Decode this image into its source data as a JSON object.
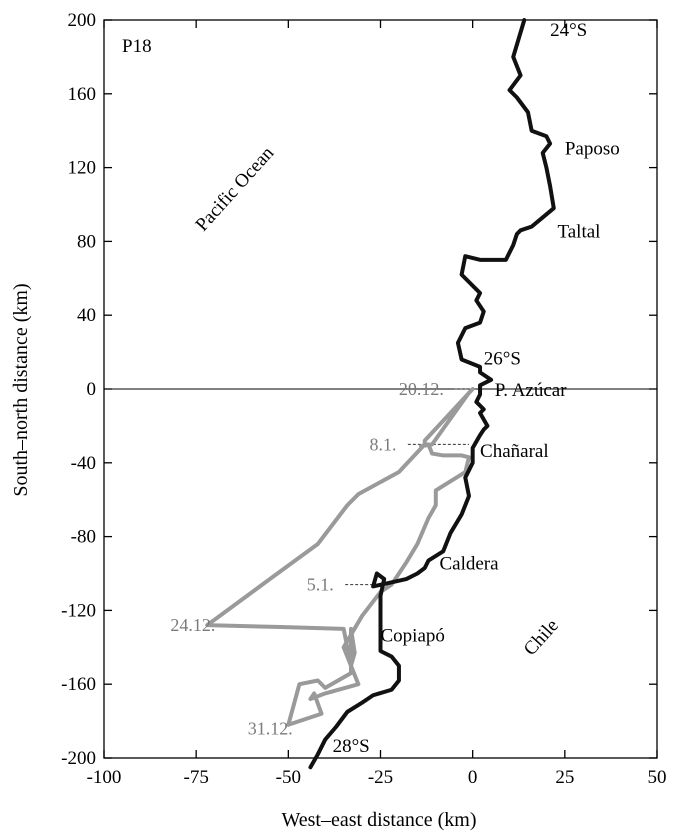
{
  "chart_data": {
    "type": "line",
    "panel_label": "P18",
    "xlabel": "West–east distance (km)",
    "ylabel": "South–north distance (km)",
    "xlim": [
      -100,
      50
    ],
    "ylim": [
      -200,
      200
    ],
    "xticks": [
      -100,
      -75,
      -50,
      -25,
      0,
      25,
      50
    ],
    "yticks": [
      -200,
      -160,
      -120,
      -80,
      -40,
      0,
      40,
      80,
      120,
      160,
      200
    ],
    "xtick_labels": [
      "-100",
      "-75",
      "-50",
      "-25",
      "0",
      "25",
      "50"
    ],
    "ytick_labels": [
      "-200",
      "-160",
      "-120",
      "-80",
      "-40",
      "0",
      "40",
      "80",
      "120",
      "160",
      "200"
    ],
    "reference_line_y": 0,
    "colors": {
      "coast": "#111111",
      "trajectory": "#9a9a9a",
      "date": "#7a7a7a"
    },
    "coastline": {
      "x": [
        -44,
        -42,
        -40,
        -37,
        -34,
        -30,
        -27,
        -22,
        -20,
        -20,
        -22,
        -25,
        -25,
        -25,
        -24,
        -26,
        -27,
        -18,
        -15,
        -13,
        -12,
        -8,
        -6,
        -3,
        -1,
        -2,
        0,
        0,
        2,
        3,
        4,
        2,
        3,
        1,
        2,
        2,
        5,
        2,
        2,
        -3,
        -4,
        -2,
        2,
        3,
        1,
        2,
        -3,
        -2,
        2,
        9,
        11,
        12,
        13,
        16,
        19,
        22,
        21,
        20,
        19,
        21,
        20,
        16,
        15,
        12,
        10,
        13,
        11,
        14
      ],
      "y": [
        -205,
        -198,
        -190,
        -183,
        -175,
        -170,
        -166,
        -163,
        -158,
        -150,
        -145,
        -142,
        -125,
        -112,
        -103,
        -100,
        -107,
        -103,
        -100,
        -97,
        -93,
        -88,
        -78,
        -68,
        -58,
        -48,
        -40,
        -32,
        -25,
        -22,
        -20,
        -13,
        -11,
        -7,
        -3,
        2,
        5,
        9,
        12,
        16,
        25,
        33,
        36,
        42,
        48,
        52,
        62,
        72,
        70,
        70,
        78,
        84,
        86,
        88,
        93,
        98,
        110,
        120,
        128,
        133,
        137,
        140,
        150,
        158,
        162,
        170,
        180,
        200
      ]
    },
    "trajectory": {
      "x": [
        0,
        -13,
        -13,
        -20,
        -31,
        -34,
        -42,
        -55,
        -72,
        -52,
        -35,
        -33,
        -32,
        -33,
        -33,
        -40,
        -42,
        -47,
        -50,
        -41,
        -43,
        -44,
        -40,
        -31,
        -35,
        -30,
        -25,
        -22,
        -20,
        -18,
        -15,
        -12,
        -10,
        -10,
        -2,
        -1,
        -3,
        -8,
        -11,
        -12,
        -14,
        -11,
        -1
      ],
      "y": [
        0,
        -28,
        -30,
        -45,
        -57,
        -63,
        -84,
        -103,
        -128,
        -129,
        -130,
        -150,
        -143,
        -130,
        -154,
        -162,
        -158,
        -160,
        -182,
        -176,
        -165,
        -168,
        -165,
        -160,
        -140,
        -123,
        -110,
        -106,
        -100,
        -94,
        -84,
        -70,
        -63,
        -55,
        -45,
        -37,
        -36,
        -36,
        -35,
        -30,
        -31,
        -30,
        -2
      ]
    },
    "place_labels": [
      {
        "text": "24°S",
        "x": 21,
        "y": 195
      },
      {
        "text": "Paposo",
        "x": 25,
        "y": 131
      },
      {
        "text": "Taltal",
        "x": 23,
        "y": 86
      },
      {
        "text": "26°S",
        "x": 3,
        "y": 17
      },
      {
        "text": "P. Azúcar",
        "x": 6,
        "y": 0
      },
      {
        "text": "Chañaral",
        "x": 2,
        "y": -33
      },
      {
        "text": "Caldera",
        "x": -9,
        "y": -94
      },
      {
        "text": "Copiapó",
        "x": -25,
        "y": -133
      },
      {
        "text": "28°S",
        "x": -38,
        "y": -193
      }
    ],
    "region_labels": [
      {
        "text": "Pacific Ocean",
        "x": -73,
        "y": 85,
        "rotate": -48
      },
      {
        "text": "Chile",
        "x": 16,
        "y": -145,
        "rotate": -48
      }
    ],
    "date_labels": [
      {
        "text": "20.12.",
        "x": -20,
        "y": 0,
        "lead_to_x": 0
      },
      {
        "text": "8.1.",
        "x": -28,
        "y": -30,
        "lead_to_x": -1
      },
      {
        "text": "5.1.",
        "x": -45,
        "y": -106,
        "lead_to_x": -22
      },
      {
        "text": "24.12.",
        "x": -82,
        "y": -128,
        "lead_to_x": -72
      },
      {
        "text": "31.12.",
        "x": -61,
        "y": -184,
        "lead_to_x": null
      }
    ]
  }
}
